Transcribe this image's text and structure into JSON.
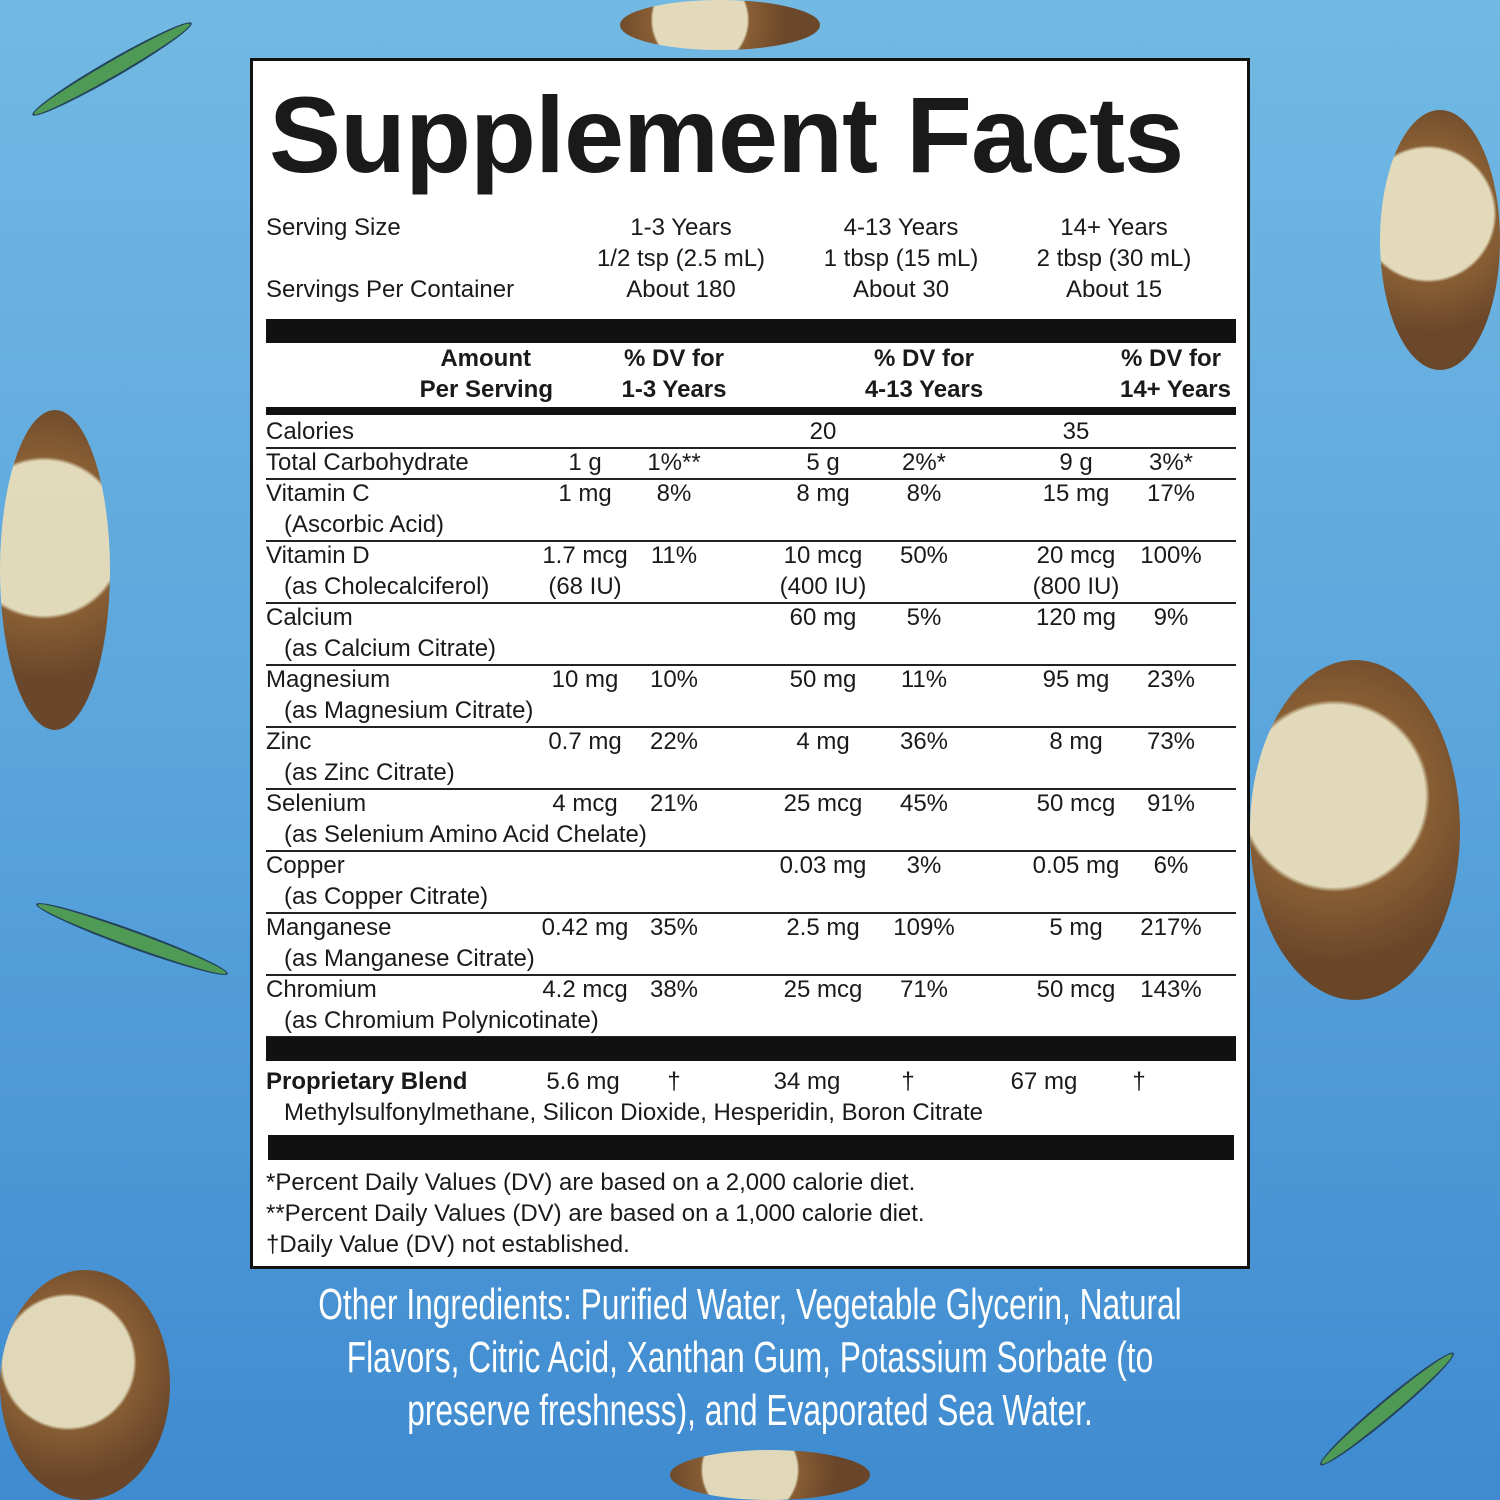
{
  "title": "Supplement Facts",
  "serving": {
    "size_label": "Serving Size",
    "servings_label": "Servings Per Container",
    "columns": [
      {
        "age": "1-3 Years",
        "size": "1/2 tsp (2.5 mL)",
        "servings": "About 180"
      },
      {
        "age": "4-13 Years",
        "size": "1 tbsp (15 mL)",
        "servings": "About 30"
      },
      {
        "age": "14+ Years",
        "size": "2 tbsp (30 mL)",
        "servings": "About 15"
      }
    ]
  },
  "header": {
    "amount_1": "Amount",
    "amount_2": "Per Serving",
    "dv1_1": "% DV for",
    "dv1_2": "1-3 Years",
    "dv2_1": "% DV for",
    "dv2_2": "4-13 Years",
    "dv3_1": "% DV for",
    "dv3_2": "14+ Years"
  },
  "rows": [
    {
      "name": "Calories",
      "sub": "",
      "values": [
        "",
        "",
        "20",
        "",
        "35",
        ""
      ],
      "subvalues": [
        "",
        "",
        "",
        "",
        "",
        ""
      ]
    },
    {
      "name": "Total Carbohydrate",
      "sub": "",
      "values": [
        "1 g",
        "1%**",
        "5 g",
        "2%*",
        "9 g",
        "3%*"
      ],
      "subvalues": [
        "",
        "",
        "",
        "",
        "",
        ""
      ]
    },
    {
      "name": "Vitamin C",
      "sub": "(Ascorbic Acid)",
      "values": [
        "1 mg",
        "8%",
        "8 mg",
        "8%",
        "15 mg",
        "17%"
      ],
      "subvalues": [
        "",
        "",
        "",
        "",
        "",
        ""
      ]
    },
    {
      "name": "Vitamin D",
      "sub": "(as Cholecalciferol)",
      "values": [
        "1.7 mcg",
        "11%",
        "10 mcg",
        "50%",
        "20 mcg",
        "100%"
      ],
      "subvalues": [
        "(68 IU)",
        "",
        "(400 IU)",
        "",
        "(800 IU)",
        ""
      ]
    },
    {
      "name": "Calcium",
      "sub": "(as Calcium Citrate)",
      "values": [
        "",
        "",
        "60 mg",
        "5%",
        "120 mg",
        "9%"
      ],
      "subvalues": [
        "",
        "",
        "",
        "",
        "",
        ""
      ]
    },
    {
      "name": "Magnesium",
      "sub": "(as Magnesium Citrate)",
      "values": [
        "10 mg",
        "10%",
        "50 mg",
        "11%",
        "95 mg",
        "23%"
      ],
      "subvalues": [
        "",
        "",
        "",
        "",
        "",
        ""
      ]
    },
    {
      "name": "Zinc",
      "sub": "(as Zinc Citrate)",
      "values": [
        "0.7 mg",
        "22%",
        "4 mg",
        "36%",
        "8 mg",
        "73%"
      ],
      "subvalues": [
        "",
        "",
        "",
        "",
        "",
        ""
      ]
    },
    {
      "name": "Selenium",
      "sub": "(as Selenium Amino Acid Chelate)",
      "values": [
        "4 mcg",
        "21%",
        "25 mcg",
        "45%",
        "50 mcg",
        "91%"
      ],
      "subvalues": [
        "",
        "",
        "",
        "",
        "",
        ""
      ]
    },
    {
      "name": "Copper",
      "sub": "(as Copper Citrate)",
      "values": [
        "",
        "",
        "0.03 mg",
        "3%",
        "0.05 mg",
        "6%"
      ],
      "subvalues": [
        "",
        "",
        "",
        "",
        "",
        ""
      ]
    },
    {
      "name": "Manganese",
      "sub": "(as Manganese Citrate)",
      "values": [
        "0.42 mg",
        "35%",
        "2.5 mg",
        "109%",
        "5 mg",
        "217%"
      ],
      "subvalues": [
        "",
        "",
        "",
        "",
        "",
        ""
      ]
    },
    {
      "name": "Chromium",
      "sub": "(as Chromium Polynicotinate)",
      "values": [
        "4.2 mcg",
        "38%",
        "25 mcg",
        "71%",
        "50 mcg",
        "143%"
      ],
      "subvalues": [
        "",
        "",
        "",
        "",
        "",
        ""
      ]
    }
  ],
  "blend": {
    "name": "Proprietary Blend",
    "values": [
      "5.6 mg",
      "†",
      "34 mg",
      "†",
      "67 mg",
      "†"
    ],
    "ingredients": "Methylsulfonylmethane, Silicon Dioxide, Hesperidin, Boron Citrate"
  },
  "footnotes": [
    "*Percent Daily Values (DV) are based on a 2,000 calorie diet.",
    "**Percent Daily Values (DV) are based on a 1,000 calorie diet.",
    "†Daily Value (DV) not established."
  ],
  "other_ingredients": "Other Ingredients: Purified Water, Vegetable Glycerin, Natural Flavors, Citric Acid, Xanthan Gum, Potassium Sorbate (to preserve freshness), and Evaporated Sea Water.",
  "colors": {
    "background": "#5aa5dc",
    "panel": "#ffffff",
    "ink": "#111111",
    "coconut": "#8a5a2b",
    "leaf": "#4f9a55"
  }
}
